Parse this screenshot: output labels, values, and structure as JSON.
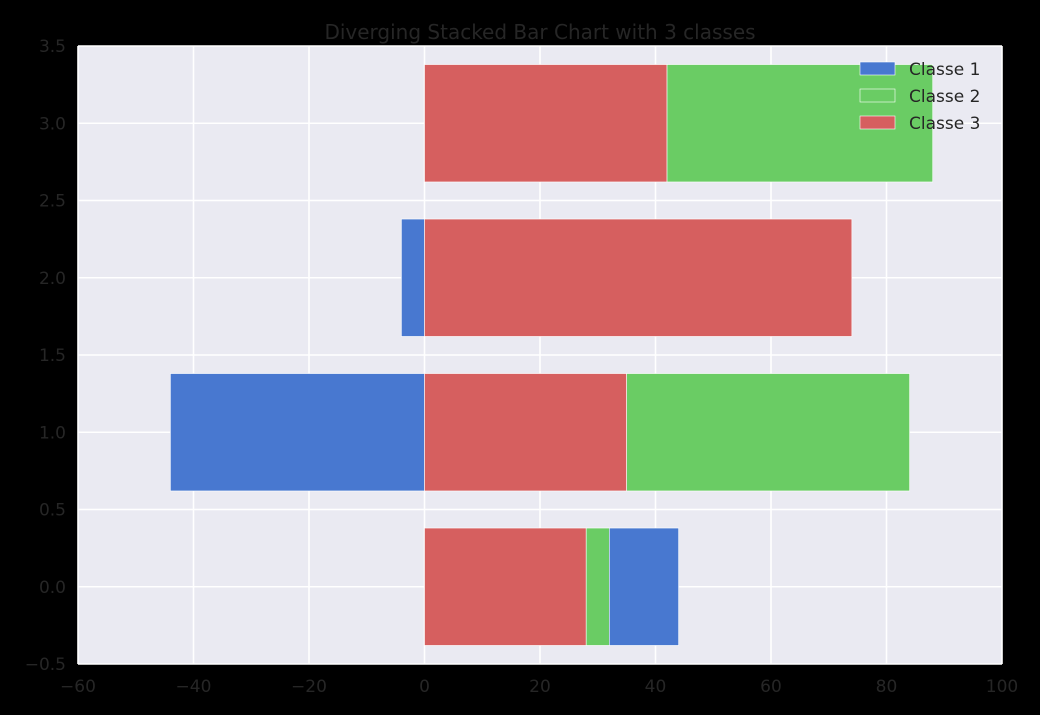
{
  "chart_data": {
    "type": "bar",
    "orientation": "horizontal",
    "stacking": "diverging",
    "title": "Diverging Stacked Bar Chart with 3 classes",
    "xlabel": "",
    "ylabel": "",
    "xlim": [
      -60,
      100
    ],
    "ylim": [
      -0.5,
      3.5
    ],
    "xticks": [
      -60,
      -40,
      -20,
      0,
      20,
      40,
      60,
      80,
      100
    ],
    "yticks": [
      -0.5,
      0.0,
      0.5,
      1.0,
      1.5,
      2.0,
      2.5,
      3.0,
      3.5
    ],
    "xtick_labels": [
      "−60",
      "−40",
      "−20",
      "0",
      "20",
      "40",
      "60",
      "80",
      "100"
    ],
    "ytick_labels": [
      "−0.5",
      "0.0",
      "0.5",
      "1.0",
      "1.5",
      "2.0",
      "2.5",
      "3.0",
      "3.5"
    ],
    "grid": true,
    "legend_position": "top-right",
    "y_positions": [
      0,
      1,
      2,
      3
    ],
    "bar_height": 0.76,
    "segments": [
      {
        "y": 0,
        "series": "Classe 3",
        "start": 0,
        "end": 28
      },
      {
        "y": 0,
        "series": "Classe 2",
        "start": 28,
        "end": 32
      },
      {
        "y": 0,
        "series": "Classe 1",
        "start": 32,
        "end": 44
      },
      {
        "y": 1,
        "series": "Classe 1",
        "start": -44,
        "end": 0
      },
      {
        "y": 1,
        "series": "Classe 3",
        "start": 0,
        "end": 35
      },
      {
        "y": 1,
        "series": "Classe 2",
        "start": 35,
        "end": 84
      },
      {
        "y": 2,
        "series": "Classe 1",
        "start": -4,
        "end": 0
      },
      {
        "y": 2,
        "series": "Classe 3",
        "start": 0,
        "end": 74
      },
      {
        "y": 3,
        "series": "Classe 3",
        "start": 0,
        "end": 42
      },
      {
        "y": 3,
        "series": "Classe 2",
        "start": 42,
        "end": 88
      }
    ],
    "series": [
      {
        "name": "Classe 1",
        "color": "#4878d0"
      },
      {
        "name": "Classe 2",
        "color": "#6acc64"
      },
      {
        "name": "Classe 3",
        "color": "#d65f5f"
      }
    ]
  },
  "colors": {
    "page_background": "#000000",
    "plot_background": "#eaeaf2",
    "grid": "#ffffff",
    "text": "#262626"
  }
}
